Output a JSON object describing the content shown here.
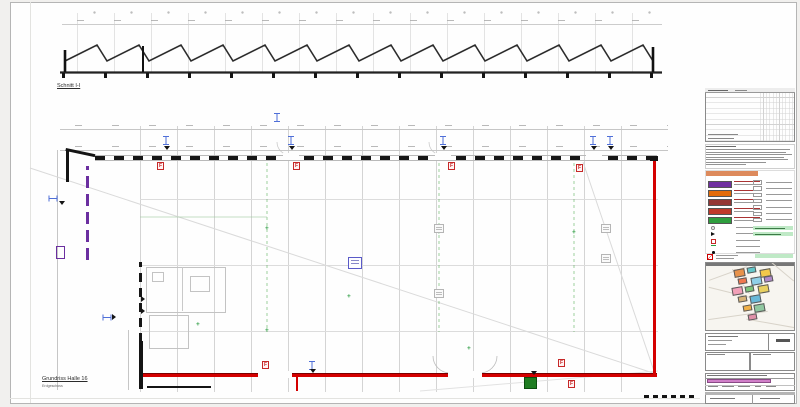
{
  "sheet": {
    "section": {
      "label": "Schnitt I-I"
    },
    "plan": {
      "label": "Grundriss Halle 16",
      "sublabel": "Erdgeschoss"
    },
    "symbols": {
      "fire_extinguisher_letter": "F",
      "survey_cross": "+"
    },
    "colors": {
      "wall_black": "#1a1a1a",
      "wall_red": "#d40000",
      "wall_purple": "#6b2fa0",
      "marker_blue": "#4f6fd8",
      "mark_green": "#2f9e44",
      "highlight_magenta": "#d07fc8",
      "legend_header_orange": "#dd8a5c"
    },
    "legend": {
      "swatches": [
        {
          "name": "legend-swatch-purple",
          "color": "#7030a0"
        },
        {
          "name": "legend-swatch-orange",
          "color": "#e36c0a"
        },
        {
          "name": "legend-swatch-maroon",
          "color": "#943634"
        },
        {
          "name": "legend-swatch-red",
          "color": "#c0392b"
        },
        {
          "name": "legend-swatch-green",
          "color": "#2e9e3e"
        }
      ]
    },
    "titleblock": {
      "map_building_colors": [
        "#e8924a",
        "#62c6c9",
        "#f2c84b",
        "#f07850",
        "#8fd0e8",
        "#b089c9",
        "#f2a0b8",
        "#7cc47c",
        "#e8d060",
        "#d8b478",
        "#68b8d8",
        "#f0b048",
        "#90c8a0",
        "#e090a8"
      ]
    }
  }
}
